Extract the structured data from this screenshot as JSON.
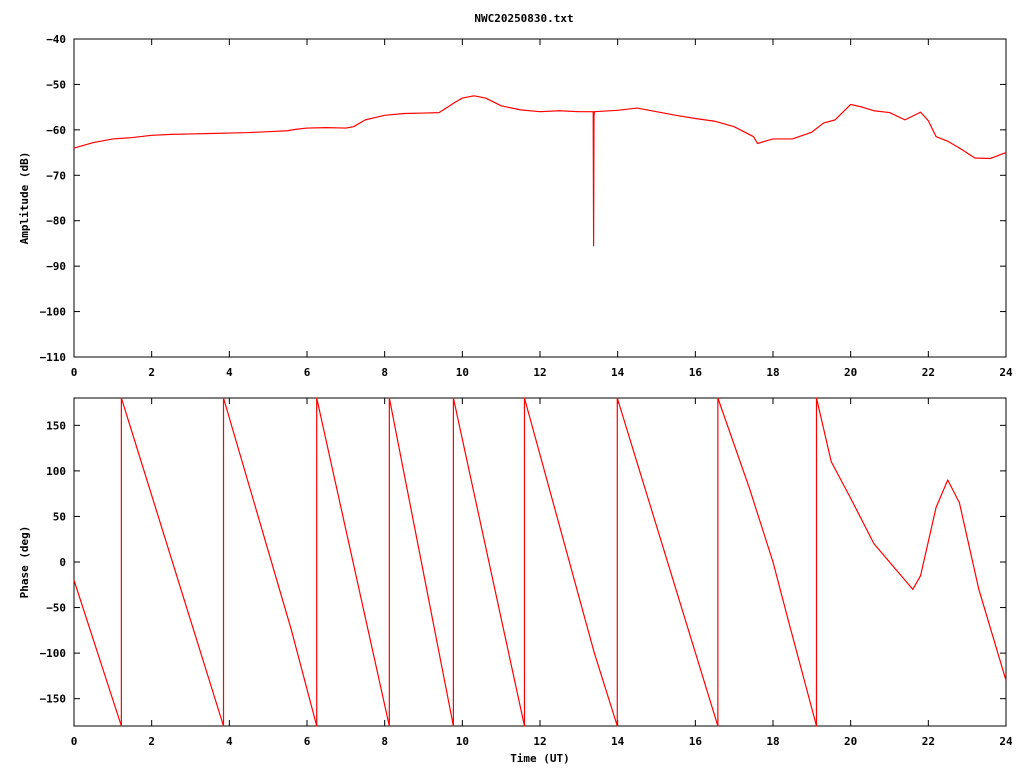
{
  "title": "NWC20250830.txt",
  "chart_data": [
    {
      "type": "line",
      "ylabel": "Amplitude (dB)",
      "xlabel": "",
      "xlim": [
        0,
        24
      ],
      "ylim": [
        -110,
        -40
      ],
      "x_ticks": [
        0,
        2,
        4,
        6,
        8,
        10,
        12,
        14,
        16,
        18,
        20,
        22,
        24
      ],
      "y_ticks": [
        -110,
        -100,
        -90,
        -80,
        -70,
        -60,
        -50,
        -40
      ],
      "color": "#ff0000",
      "grid": false,
      "series": [
        {
          "x": [
            0,
            0.5,
            1.0,
            1.5,
            2.0,
            2.5,
            3.0,
            3.5,
            4.0,
            4.5,
            5.0,
            5.5,
            5.7,
            6.0,
            6.5,
            7.0,
            7.2,
            7.5,
            8.0,
            8.5,
            9.0,
            9.4,
            9.8,
            10.0,
            10.3,
            10.6,
            11.0,
            11.5,
            12.0,
            12.5,
            13.0,
            13.37,
            13.38,
            13.39,
            13.4,
            14.0,
            14.5,
            15.0,
            15.5,
            16.0,
            16.5,
            17.0,
            17.5,
            17.6,
            18.0,
            18.5,
            19.0,
            19.3,
            19.6,
            20.0,
            20.3,
            20.6,
            21.0,
            21.4,
            21.8,
            22.0,
            22.2,
            22.5,
            22.8,
            23.2,
            23.6,
            24.0
          ],
          "y": [
            -64,
            -62.8,
            -62,
            -61.7,
            -61.2,
            -61,
            -60.9,
            -60.8,
            -60.7,
            -60.6,
            -60.4,
            -60.2,
            -59.9,
            -59.6,
            -59.5,
            -59.6,
            -59.3,
            -57.8,
            -56.8,
            -56.4,
            -56.3,
            -56.2,
            -54,
            -53,
            -52.5,
            -53,
            -54.7,
            -55.6,
            -56,
            -55.8,
            -56,
            -56,
            -85.5,
            -57,
            -56,
            -55.7,
            -55.2,
            -56,
            -56.8,
            -57.5,
            -58.1,
            -59.3,
            -61.5,
            -63,
            -62,
            -62,
            -60.5,
            -58.5,
            -57.8,
            -54.4,
            -55,
            -55.8,
            -56.2,
            -57.8,
            -56.1,
            -58,
            -61.5,
            -62.5,
            -64,
            -66.2,
            -66.3,
            -65
          ]
        }
      ]
    },
    {
      "type": "line",
      "ylabel": "Phase (deg)",
      "xlabel": "Time (UT)",
      "xlim": [
        0,
        24
      ],
      "ylim": [
        -180,
        180
      ],
      "x_ticks": [
        0,
        2,
        4,
        6,
        8,
        10,
        12,
        14,
        16,
        18,
        20,
        22,
        24
      ],
      "y_ticks": [
        -150,
        -100,
        -50,
        0,
        50,
        100,
        150
      ],
      "color": "#ff0000",
      "grid": false,
      "series": [
        {
          "x": [
            0,
            1.22,
            1.22,
            3.85,
            3.85,
            5.6,
            6.25,
            6.25,
            8.12,
            8.12,
            9.77,
            9.77,
            11.6,
            11.6,
            13.4,
            13.99,
            13.99,
            16.58,
            16.58,
            17.4,
            18.0,
            18.4,
            19.12,
            19.12,
            19.5,
            20.0,
            20.6,
            21.2,
            21.6,
            21.8,
            22.2,
            22.5,
            22.8,
            23.3,
            24.0
          ],
          "y": [
            -20,
            -180,
            180,
            -180,
            180,
            -75,
            -180,
            180,
            -180,
            180,
            -180,
            180,
            -180,
            180,
            -100,
            -180,
            180,
            -180,
            180,
            80,
            0,
            -65,
            -180,
            180,
            110,
            70,
            20,
            -10,
            -30,
            -15,
            60,
            90,
            65,
            -30,
            -130
          ]
        }
      ]
    }
  ]
}
